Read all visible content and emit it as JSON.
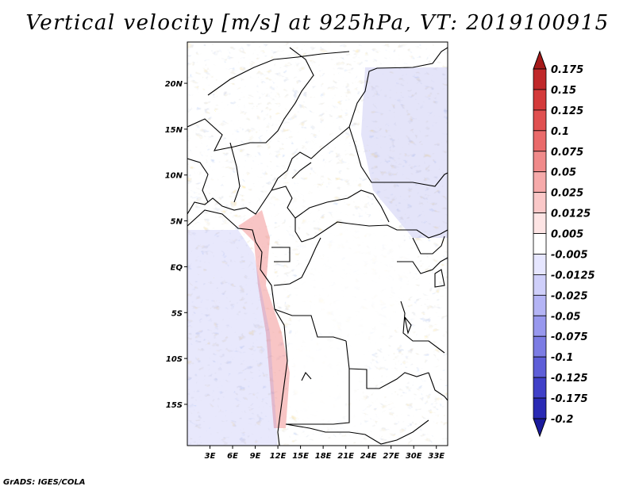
{
  "title": "Vertical velocity [m/s] at 925hPa, VT: 2019100915",
  "credit": "GrADS: IGES/COLA",
  "map": {
    "lat_labels": [
      "20N",
      "15N",
      "10N",
      "5N",
      "EQ",
      "5S",
      "10S",
      "15S"
    ],
    "lat_values": [
      20,
      15,
      10,
      5,
      0,
      -5,
      -10,
      -15
    ],
    "lon_labels": [
      "3E",
      "6E",
      "9E",
      "12E",
      "15E",
      "18E",
      "21E",
      "24E",
      "27E",
      "30E",
      "33E"
    ],
    "lon_values": [
      3,
      6,
      9,
      12,
      15,
      18,
      21,
      24,
      27,
      30,
      33
    ],
    "lon_range": [
      0,
      34.5
    ],
    "lat_range": [
      -19.5,
      24.5
    ]
  },
  "colorbar": {
    "labels": [
      "0.175",
      "0.15",
      "0.125",
      "0.1",
      "0.075",
      "0.05",
      "0.025",
      "0.0125",
      "0.005",
      "-0.005",
      "-0.0125",
      "-0.025",
      "-0.05",
      "-0.075",
      "-0.1",
      "-0.125",
      "-0.175",
      "-0.2"
    ],
    "colors": [
      "#a51a1a",
      "#c0282a",
      "#d43a3a",
      "#e05050",
      "#ea6a6a",
      "#f08a8a",
      "#f6aaaa",
      "#fac8c8",
      "#fde4e4",
      "#ffffff",
      "#e6e6ff",
      "#cfcffa",
      "#b4b4f5",
      "#9898ee",
      "#7c7ce4",
      "#5e5ed8",
      "#4040c8",
      "#2a2ab4",
      "#1a1a9c"
    ]
  }
}
